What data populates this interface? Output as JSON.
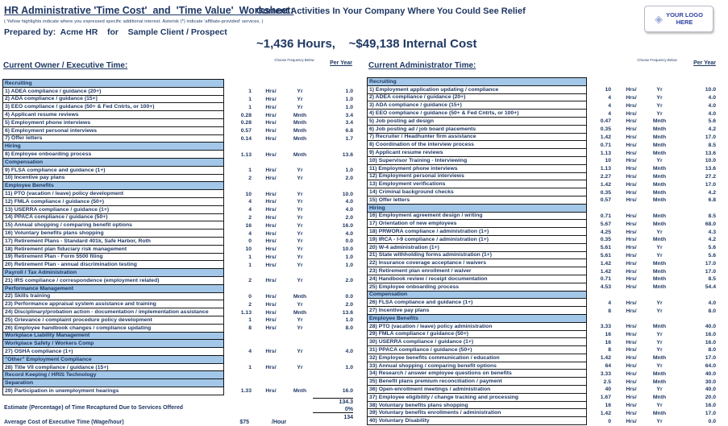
{
  "colors": {
    "text_navy": "#1F3864",
    "section_bg": "#A3C7E8",
    "logo_blue": "#2F3F9F"
  },
  "header": {
    "title": "HR Administrative 'Time Cost'  and  'Time Value'  Worksheet:",
    "title_suffix": "Current Activities In Your Company Where You Could See Relief",
    "note": "( Yellow highlights indicate where you expressed specific additional interest.   Asterisk (*) indicate 'affiliate-provided' services. )",
    "prepared_by": "Prepared by:  Acme HR    for    Sample Client / Prospect",
    "summary": "~1,436 Hours,    ~$49,138 Internal Cost",
    "logo": {
      "icon": "diamond-icon",
      "line1": "YOUR LOGO",
      "line2": "HERE"
    }
  },
  "column_headers": {
    "frequency": "Choose Frequency Below",
    "per_year": "Per Year"
  },
  "owner_table": {
    "heading": "Current Owner / Executive Time:",
    "rows": [
      {
        "type": "section",
        "label": "Recruiting"
      },
      {
        "type": "item",
        "label": "1) ADEA compliance / guidance (20+)",
        "value": "1",
        "unit": "Hrs/",
        "freq": "Yr",
        "per_year": "1.0"
      },
      {
        "type": "item",
        "label": "2) ADA compliance / guidance (15+)",
        "value": "1",
        "unit": "Hrs/",
        "freq": "Yr",
        "per_year": "1.0"
      },
      {
        "type": "item",
        "label": "3) EEO compliance / guidance (50+ & Fed Cntrts, or 100+)",
        "value": "1",
        "unit": "Hrs/",
        "freq": "Yr",
        "per_year": "1.0"
      },
      {
        "type": "item",
        "label": "4) Applicant resume reviews",
        "value": "0.28",
        "unit": "Hrs/",
        "freq": "Mnth",
        "per_year": "3.4"
      },
      {
        "type": "item",
        "label": "5) Employment phone interviews",
        "value": "0.28",
        "unit": "Hrs/",
        "freq": "Mnth",
        "per_year": "3.4"
      },
      {
        "type": "item",
        "label": "6) Employment personal interviews",
        "value": "0.57",
        "unit": "Hrs/",
        "freq": "Mnth",
        "per_year": "6.8"
      },
      {
        "type": "item",
        "label": "7) Offer letters",
        "value": "0.14",
        "unit": "Hrs/",
        "freq": "Mnth",
        "per_year": "1.7"
      },
      {
        "type": "section",
        "label": "Hiring"
      },
      {
        "type": "item",
        "label": "8) Employee onboarding process",
        "value": "1.13",
        "unit": "Hrs/",
        "freq": "Mnth",
        "per_year": "13.6"
      },
      {
        "type": "section",
        "label": "Compensation"
      },
      {
        "type": "item",
        "label": "9) FLSA compliance and guidance (1+)",
        "value": "1",
        "unit": "Hrs/",
        "freq": "Yr",
        "per_year": "1.0"
      },
      {
        "type": "item",
        "label": "10) Incentive pay plans",
        "value": "2",
        "unit": "Hrs/",
        "freq": "Yr",
        "per_year": "2.0"
      },
      {
        "type": "section",
        "label": "Employee Benefits"
      },
      {
        "type": "item",
        "label": "11) PTO (vacation / leave) policy development",
        "value": "10",
        "unit": "Hrs/",
        "freq": "Yr",
        "per_year": "10.0"
      },
      {
        "type": "item",
        "label": "12) FMLA compliance / guidance (50+)",
        "value": "4",
        "unit": "Hrs/",
        "freq": "Yr",
        "per_year": "4.0"
      },
      {
        "type": "item",
        "label": "13) USERRA compliance / guidance (1+)",
        "value": "4",
        "unit": "Hrs/",
        "freq": "Yr",
        "per_year": "4.0"
      },
      {
        "type": "item",
        "label": "14) PPACA compliance / guidance (50+)",
        "value": "2",
        "unit": "Hrs/",
        "freq": "Yr",
        "per_year": "2.0"
      },
      {
        "type": "item",
        "label": "15) Annual shopping / comparing benefit options",
        "value": "16",
        "unit": "Hrs/",
        "freq": "Yr",
        "per_year": "16.0"
      },
      {
        "type": "item",
        "label": "16) Voluntary benefits plans shopping",
        "value": "4",
        "unit": "Hrs/",
        "freq": "Yr",
        "per_year": "4.0"
      },
      {
        "type": "item",
        "label": "17) Retirement Plans - Standard 401k, Safe Harbor, Roth",
        "value": "0",
        "unit": "Hrs/",
        "freq": "Yr",
        "per_year": "0.0"
      },
      {
        "type": "item",
        "label": "18) Retirement plan fiduciary risk management",
        "value": "10",
        "unit": "Hrs/",
        "freq": "Yr",
        "per_year": "10.0"
      },
      {
        "type": "item",
        "label": "19) Retirement Plan - Form 5500 filing",
        "value": "1",
        "unit": "Hrs/",
        "freq": "Yr",
        "per_year": "1.0"
      },
      {
        "type": "item",
        "label": "20) Retirement Plan - annual discrimination testing",
        "value": "1",
        "unit": "Hrs/",
        "freq": "Yr",
        "per_year": "1.0"
      },
      {
        "type": "section",
        "label": "Payroll / Tax Administration"
      },
      {
        "type": "item",
        "label": "21) IRS compliance / correspondence (employment related)",
        "value": "2",
        "unit": "Hrs/",
        "freq": "Yr",
        "per_year": "2.0"
      },
      {
        "type": "section",
        "label": "Performance Management"
      },
      {
        "type": "item",
        "label": "22) Skills training",
        "value": "0",
        "unit": "Hrs/",
        "freq": "Mnth",
        "per_year": "0.0"
      },
      {
        "type": "item",
        "label": "23) Performance appraisal system assistance and training",
        "value": "2",
        "unit": "Hrs/",
        "freq": "Yr",
        "per_year": "2.0"
      },
      {
        "type": "item",
        "label": "24) Disciplinary/probation action - documentation / implementation assistance",
        "value": "1.13",
        "unit": "Hrs/",
        "freq": "Mnth",
        "per_year": "13.6"
      },
      {
        "type": "item",
        "label": "25) Grievance / complaint procedure policy development",
        "value": "1",
        "unit": "Hrs/",
        "freq": "Yr",
        "per_year": "1.0"
      },
      {
        "type": "item",
        "label": "26) Employee handbook changes / compliance updating",
        "value": "8",
        "unit": "Hrs/",
        "freq": "Yr",
        "per_year": "8.0"
      },
      {
        "type": "section",
        "label": "Workplace Liability Management"
      },
      {
        "type": "section",
        "label": "Workplace Safety / Workers Comp"
      },
      {
        "type": "item",
        "label": "27) OSHA compliance (1+)",
        "value": "4",
        "unit": "Hrs/",
        "freq": "Yr",
        "per_year": "4.0"
      },
      {
        "type": "section",
        "label": "\"Other\" Employment Compliance"
      },
      {
        "type": "item",
        "label": "28) Title VII compliance / guidance (15+)",
        "value": "1",
        "unit": "Hrs/",
        "freq": "Yr",
        "per_year": "1.0"
      },
      {
        "type": "section",
        "label": "Record Keeping / HRIS Technology"
      },
      {
        "type": "section",
        "label": "Separation"
      },
      {
        "type": "item",
        "label": "29) Participation in unemployment hearings",
        "value": "1.33",
        "unit": "Hrs/",
        "freq": "Mnth",
        "per_year": "16.0"
      }
    ],
    "totals": {
      "subtotal": "134.3",
      "estimate_label": "Estimate (Percentage) of Time Recaptured Due to Services Offered",
      "estimate_value": "0%",
      "net_total": "134",
      "avg_cost_label": "Average Cost of Executive Time (Wage/hour)",
      "avg_cost_value": "$75",
      "avg_cost_unit": "/Hour"
    }
  },
  "admin_table": {
    "heading": "Current Administrator Time:",
    "rows": [
      {
        "type": "section",
        "label": "Recruiting"
      },
      {
        "type": "item",
        "label": "1) Employment application updating / compliance",
        "value": "10",
        "unit": "Hrs/",
        "freq": "Yr",
        "per_year": "10.0"
      },
      {
        "type": "item",
        "label": "2) ADEA compliance / guidance (20+)",
        "value": "4",
        "unit": "Hrs/",
        "freq": "Yr",
        "per_year": "4.0"
      },
      {
        "type": "item",
        "label": "3) ADA compliance / guidance (15+)",
        "value": "4",
        "unit": "Hrs/",
        "freq": "Yr",
        "per_year": "4.0"
      },
      {
        "type": "item",
        "label": "4) EEO compliance / guidance (50+ & Fed Cntrts, or 100+)",
        "value": "4",
        "unit": "Hrs/",
        "freq": "Yr",
        "per_year": "4.0"
      },
      {
        "type": "item",
        "label": "5) Job posting ad design",
        "value": "0.47",
        "unit": "Hrs/",
        "freq": "Mnth",
        "per_year": "5.6"
      },
      {
        "type": "item",
        "label": "6) Job posting ad / job board placements",
        "value": "0.35",
        "unit": "Hrs/",
        "freq": "Mnth",
        "per_year": "4.2"
      },
      {
        "type": "item",
        "label": "7) Recruiter / Headhunter firm assistance",
        "value": "1.42",
        "unit": "Hrs/",
        "freq": "Mnth",
        "per_year": "17.0"
      },
      {
        "type": "item",
        "label": "8) Coordination of the interview process",
        "value": "0.71",
        "unit": "Hrs/",
        "freq": "Mnth",
        "per_year": "8.5"
      },
      {
        "type": "item",
        "label": "9) Applicant resume reviews",
        "value": "1.13",
        "unit": "Hrs/",
        "freq": "Mnth",
        "per_year": "13.6"
      },
      {
        "type": "item",
        "label": "10) Supervisor Training - Interviewing",
        "value": "10",
        "unit": "Hrs/",
        "freq": "Yr",
        "per_year": "10.0"
      },
      {
        "type": "item",
        "label": "11) Employment phone interviews",
        "value": "1.13",
        "unit": "Hrs/",
        "freq": "Mnth",
        "per_year": "13.6"
      },
      {
        "type": "item",
        "label": "12) Employment personal interviews",
        "value": "2.27",
        "unit": "Hrs/",
        "freq": "Mnth",
        "per_year": "27.2"
      },
      {
        "type": "item",
        "label": "13) Employment verifications",
        "value": "1.42",
        "unit": "Hrs/",
        "freq": "Mnth",
        "per_year": "17.0"
      },
      {
        "type": "item",
        "label": "14) Criminal background checks",
        "value": "0.35",
        "unit": "Hrs/",
        "freq": "Mnth",
        "per_year": "4.2"
      },
      {
        "type": "item",
        "label": "15) Offer letters",
        "value": "0.57",
        "unit": "Hrs/",
        "freq": "Mnth",
        "per_year": "6.8"
      },
      {
        "type": "section",
        "label": "Hiring"
      },
      {
        "type": "item",
        "label": "16) Employment agreement design / writing",
        "value": "0.71",
        "unit": "Hrs/",
        "freq": "Mnth",
        "per_year": "8.5"
      },
      {
        "type": "item",
        "label": "17) Orientation of new employees",
        "value": "5.67",
        "unit": "Hrs/",
        "freq": "Mnth",
        "per_year": "68.0"
      },
      {
        "type": "item",
        "label": "18) PRWORA compliance / administration (1+)",
        "value": "4.25",
        "unit": "Hrs/",
        "freq": "Yr",
        "per_year": "4.3"
      },
      {
        "type": "item",
        "label": "19) IRCA - I-9 compliance / administration (1+)",
        "value": "0.35",
        "unit": "Hrs/",
        "freq": "Mnth",
        "per_year": "4.2"
      },
      {
        "type": "item",
        "label": "20) W-4 administration (1+)",
        "value": "5.61",
        "unit": "Hrs/",
        "freq": "Yr",
        "per_year": "5.6"
      },
      {
        "type": "item",
        "label": "21) State withholding forms administration (1+)",
        "value": "5.61",
        "unit": "Hrs/",
        "freq": "Yr",
        "per_year": "5.6"
      },
      {
        "type": "item",
        "label": "22) Insurance coverage acceptance / waivers",
        "value": "1.42",
        "unit": "Hrs/",
        "freq": "Mnth",
        "per_year": "17.0"
      },
      {
        "type": "item",
        "label": "23) Retirement plan enrollment / waiver",
        "value": "1.42",
        "unit": "Hrs/",
        "freq": "Mnth",
        "per_year": "17.0"
      },
      {
        "type": "item",
        "label": "24) Handbook review / receipt documentation",
        "value": "0.71",
        "unit": "Hrs/",
        "freq": "Mnth",
        "per_year": "8.5"
      },
      {
        "type": "item",
        "label": "25) Employee onboarding process",
        "value": "4.53",
        "unit": "Hrs/",
        "freq": "Mnth",
        "per_year": "54.4"
      },
      {
        "type": "section",
        "label": "Compensation"
      },
      {
        "type": "item",
        "label": "26) FLSA compliance and guidance (1+)",
        "value": "4",
        "unit": "Hrs/",
        "freq": "Yr",
        "per_year": "4.0"
      },
      {
        "type": "item",
        "label": "27) Incentive pay plans",
        "value": "8",
        "unit": "Hrs/",
        "freq": "Yr",
        "per_year": "8.0"
      },
      {
        "type": "section",
        "label": "Employee Benefits"
      },
      {
        "type": "item",
        "label": "28) PTO (vacation / leave) policy administration",
        "value": "3.33",
        "unit": "Hrs/",
        "freq": "Mnth",
        "per_year": "40.0"
      },
      {
        "type": "item",
        "label": "29) FMLA compliance / guidance (50+)",
        "value": "16",
        "unit": "Hrs/",
        "freq": "Yr",
        "per_year": "16.0"
      },
      {
        "type": "item",
        "label": "30) USERRA compliance / guidance (1+)",
        "value": "16",
        "unit": "Hrs/",
        "freq": "Yr",
        "per_year": "16.0"
      },
      {
        "type": "item",
        "label": "31) PPACA compliance / guidance (50+)",
        "value": "8",
        "unit": "Hrs/",
        "freq": "Yr",
        "per_year": "8.0"
      },
      {
        "type": "item",
        "label": "32) Employee benefits communication / education",
        "value": "1.42",
        "unit": "Hrs/",
        "freq": "Mnth",
        "per_year": "17.0"
      },
      {
        "type": "item",
        "label": "33) Annual shopping / comparing benefit options",
        "value": "64",
        "unit": "Hrs/",
        "freq": "Yr",
        "per_year": "64.0"
      },
      {
        "type": "item",
        "label": "34) Research / answer employee questions on benefits",
        "value": "3.33",
        "unit": "Hrs/",
        "freq": "Mnth",
        "per_year": "40.0"
      },
      {
        "type": "item",
        "label": "35) Benefit plans premium reconciliation / payment",
        "value": "2.5",
        "unit": "Hrs/",
        "freq": "Mnth",
        "per_year": "30.0"
      },
      {
        "type": "item",
        "label": "36) Open-enrollment meetings / administration",
        "value": "40",
        "unit": "Hrs/",
        "freq": "Yr",
        "per_year": "40.0"
      },
      {
        "type": "item",
        "label": "37) Employee eligibility / change tracking and processing",
        "value": "1.67",
        "unit": "Hrs/",
        "freq": "Mnth",
        "per_year": "20.0"
      },
      {
        "type": "item",
        "label": "38) Voluntary benefits plans shopping",
        "value": "16",
        "unit": "Hrs/",
        "freq": "Yr",
        "per_year": "16.0"
      },
      {
        "type": "item",
        "label": "39) Voluntary benefits enrollments / administration",
        "value": "1.42",
        "unit": "Hrs/",
        "freq": "Mnth",
        "per_year": "17.0"
      },
      {
        "type": "item",
        "label": "40) Voluntary Disability",
        "value": "0",
        "unit": "Hrs/",
        "freq": "Yr",
        "per_year": "0.0"
      }
    ]
  }
}
